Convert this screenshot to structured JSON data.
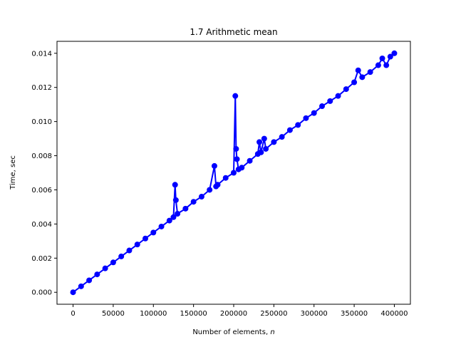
{
  "chart_data": {
    "type": "line",
    "title": "1.7 Arithmetic mean",
    "xlabel_main": "Number of elements, ",
    "xlabel_var": "n",
    "ylabel": "Time, sec",
    "xlim": [
      -20000,
      420000
    ],
    "ylim": [
      -0.0007,
      0.0147
    ],
    "xticks": [
      0,
      50000,
      100000,
      150000,
      200000,
      250000,
      300000,
      350000,
      400000
    ],
    "xtick_labels": [
      "0",
      "50000",
      "100000",
      "150000",
      "200000",
      "250000",
      "300000",
      "350000",
      "400000"
    ],
    "yticks": [
      0.0,
      0.002,
      0.004,
      0.006,
      0.008,
      0.01,
      0.012,
      0.014
    ],
    "ytick_labels": [
      "0.000",
      "0.002",
      "0.004",
      "0.006",
      "0.008",
      "0.010",
      "0.012",
      "0.014"
    ],
    "grid": false,
    "color": "#0000ff",
    "marker": "circle",
    "series": [
      {
        "x": [
          0,
          10000,
          20000,
          30000,
          40000,
          50000,
          60000,
          70000,
          80000,
          90000,
          100000,
          110000,
          120000,
          125000,
          127000,
          128000,
          130000,
          140000,
          150000,
          160000,
          170000,
          176000,
          178000,
          180000,
          190000,
          200000,
          202000,
          203000,
          204000,
          206000,
          210000,
          220000,
          230000,
          232000,
          234000,
          238000,
          240000,
          250000,
          260000,
          270000,
          280000,
          290000,
          300000,
          310000,
          320000,
          330000,
          340000,
          350000,
          355000,
          360000,
          370000,
          380000,
          385000,
          390000,
          395000,
          400000
        ],
        "y": [
          0.0,
          0.00035,
          0.0007,
          0.00105,
          0.0014,
          0.00175,
          0.0021,
          0.00245,
          0.0028,
          0.00315,
          0.0035,
          0.00385,
          0.0042,
          0.0044,
          0.0063,
          0.0054,
          0.0046,
          0.0049,
          0.0053,
          0.0056,
          0.006,
          0.0074,
          0.0062,
          0.0063,
          0.0067,
          0.007,
          0.0115,
          0.0084,
          0.0078,
          0.0072,
          0.0073,
          0.0077,
          0.0081,
          0.0088,
          0.0082,
          0.009,
          0.0084,
          0.0088,
          0.0091,
          0.0095,
          0.0098,
          0.0102,
          0.0105,
          0.0109,
          0.0112,
          0.0115,
          0.0119,
          0.0123,
          0.013,
          0.0126,
          0.0129,
          0.0133,
          0.0137,
          0.0133,
          0.0138,
          0.014
        ]
      }
    ]
  }
}
